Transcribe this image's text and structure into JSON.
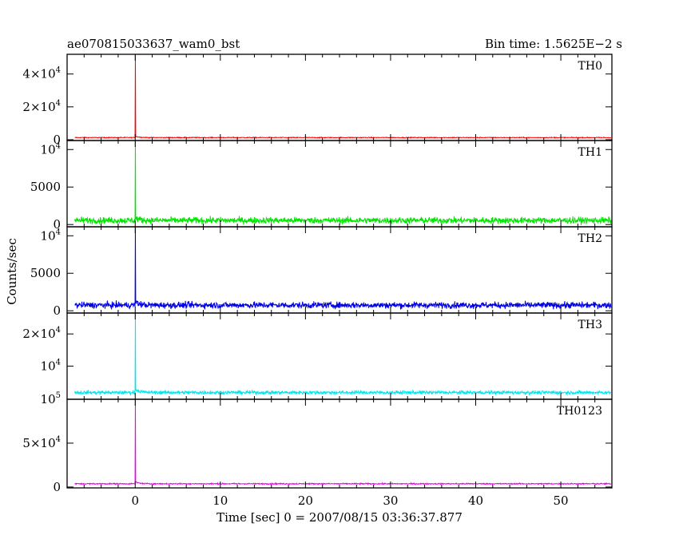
{
  "header": {
    "title": "ae070815033637_wam0_bst",
    "bin_time": "Bin time: 1.5625E−2 s"
  },
  "chart_data": {
    "type": "line",
    "xlabel": "Time [sec] 0 = 2007/08/15 03:36:37.877",
    "ylabel": "Counts/sec",
    "xlim": [
      -8,
      56
    ],
    "x_ticks": [
      {
        "value": 0,
        "label": "0"
      },
      {
        "value": 10,
        "label": "10"
      },
      {
        "value": 20,
        "label": "20"
      },
      {
        "value": 30,
        "label": "30"
      },
      {
        "value": 40,
        "label": "40"
      },
      {
        "value": 50,
        "label": "50"
      }
    ],
    "grid": false,
    "panels": [
      {
        "name": "TH0",
        "color": "#ff0000",
        "ylim": [
          -500,
          52000
        ],
        "y_ticks": [
          {
            "value": 0,
            "mantissa": "0",
            "exp": ""
          },
          {
            "value": 20000,
            "mantissa": "2×10",
            "exp": "4"
          },
          {
            "value": 40000,
            "mantissa": "4×10",
            "exp": "4"
          }
        ],
        "baseline": 1300,
        "noise": 250,
        "burst_peak": 52000,
        "burst_time": 0
      },
      {
        "name": "TH1",
        "color": "#00e600",
        "ylim": [
          -300,
          11200
        ],
        "y_ticks": [
          {
            "value": 0,
            "mantissa": "0",
            "exp": ""
          },
          {
            "value": 5000,
            "mantissa": "5000",
            "exp": ""
          },
          {
            "value": 10000,
            "mantissa": "10",
            "exp": "4"
          }
        ],
        "baseline": 550,
        "noise": 420,
        "burst_peak": 11200,
        "burst_time": 0
      },
      {
        "name": "TH2",
        "color": "#0000e6",
        "ylim": [
          -300,
          11200
        ],
        "y_ticks": [
          {
            "value": 0,
            "mantissa": "0",
            "exp": ""
          },
          {
            "value": 5000,
            "mantissa": "5000",
            "exp": ""
          },
          {
            "value": 10000,
            "mantissa": "10",
            "exp": "4"
          }
        ],
        "baseline": 750,
        "noise": 420,
        "burst_peak": 11200,
        "burst_time": 0
      },
      {
        "name": "TH3",
        "color": "#00e5ee",
        "ylim": [
          -300,
          26500
        ],
        "y_ticks": [
          {
            "value": 10000,
            "mantissa": "10",
            "exp": "4"
          },
          {
            "value": 20000,
            "mantissa": "2×10",
            "exp": "4"
          }
        ],
        "baseline": 1800,
        "noise": 520,
        "burst_peak": 26500,
        "burst_time": 0
      },
      {
        "name": "TH0123",
        "color": "#ee00ee",
        "ylim": [
          -1000,
          100000
        ],
        "y_ticks": [
          {
            "value": 0,
            "mantissa": "0",
            "exp": ""
          },
          {
            "value": 50000,
            "mantissa": "5×10",
            "exp": "4"
          },
          {
            "value": 100000,
            "mantissa": "10",
            "exp": "5"
          }
        ],
        "baseline": 3700,
        "noise": 650,
        "burst_peak": 100000,
        "burst_time": 0
      }
    ]
  }
}
